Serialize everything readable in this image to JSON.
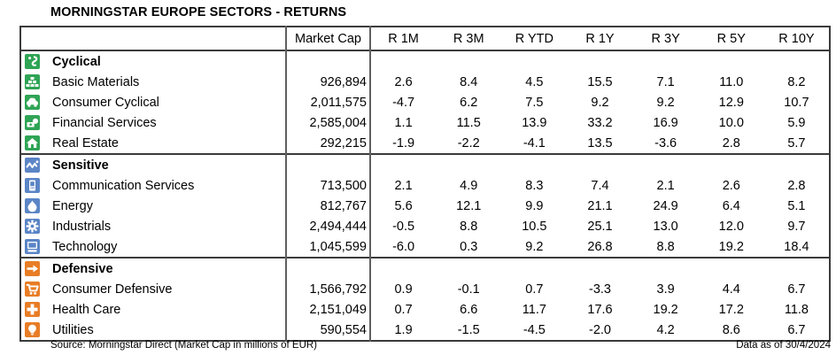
{
  "title": "MORNINGSTAR EUROPE SECTORS - RETURNS",
  "colors": {
    "cyclical": "#2FA455",
    "sensitive": "#5B85C6",
    "defensive": "#E87D25",
    "border_dark": "#3b3b3b",
    "border_gray": "#5f5f5f"
  },
  "table": {
    "columns": [
      "Market Cap",
      "R 1M",
      "R 3M",
      "R YTD",
      "R 1Y",
      "R 3Y",
      "R 5Y",
      "R 10Y"
    ],
    "groups": [
      {
        "name": "Cyclical",
        "icon": "cyclical",
        "color": "#2FA455",
        "rows": [
          {
            "label": "Basic Materials",
            "icon": "basic-materials",
            "market_cap": "926,894",
            "returns": [
              "2.6",
              "8.4",
              "4.5",
              "15.5",
              "7.1",
              "11.0",
              "8.2"
            ]
          },
          {
            "label": "Consumer Cyclical",
            "icon": "consumer-cyclical",
            "market_cap": "2,011,575",
            "returns": [
              "-4.7",
              "6.2",
              "7.5",
              "9.2",
              "9.2",
              "12.9",
              "10.7"
            ]
          },
          {
            "label": "Financial Services",
            "icon": "financial-services",
            "market_cap": "2,585,004",
            "returns": [
              "1.1",
              "11.5",
              "13.9",
              "33.2",
              "16.9",
              "10.0",
              "5.9"
            ]
          },
          {
            "label": "Real Estate",
            "icon": "real-estate",
            "market_cap": "292,215",
            "returns": [
              "-1.9",
              "-2.2",
              "-4.1",
              "13.5",
              "-3.6",
              "2.8",
              "5.7"
            ]
          }
        ]
      },
      {
        "name": "Sensitive",
        "icon": "sensitive",
        "color": "#5B85C6",
        "rows": [
          {
            "label": "Communication Services",
            "icon": "communication-services",
            "market_cap": "713,500",
            "returns": [
              "2.1",
              "4.9",
              "8.3",
              "7.4",
              "2.1",
              "2.6",
              "2.8"
            ]
          },
          {
            "label": "Energy",
            "icon": "energy",
            "market_cap": "812,767",
            "returns": [
              "5.6",
              "12.1",
              "9.9",
              "21.1",
              "24.9",
              "6.4",
              "5.1"
            ]
          },
          {
            "label": "Industrials",
            "icon": "industrials",
            "market_cap": "2,494,444",
            "returns": [
              "-0.5",
              "8.8",
              "10.5",
              "25.1",
              "13.0",
              "12.0",
              "9.7"
            ]
          },
          {
            "label": "Technology",
            "icon": "technology",
            "market_cap": "1,045,599",
            "returns": [
              "-6.0",
              "0.3",
              "9.2",
              "26.8",
              "8.8",
              "19.2",
              "18.4"
            ]
          }
        ]
      },
      {
        "name": "Defensive",
        "icon": "defensive",
        "color": "#E87D25",
        "rows": [
          {
            "label": "Consumer Defensive",
            "icon": "consumer-defensive",
            "market_cap": "1,566,792",
            "returns": [
              "0.9",
              "-0.1",
              "0.7",
              "-3.3",
              "3.9",
              "4.4",
              "6.7"
            ]
          },
          {
            "label": "Health Care",
            "icon": "health-care",
            "market_cap": "2,151,049",
            "returns": [
              "0.7",
              "6.6",
              "11.7",
              "17.6",
              "19.2",
              "17.2",
              "11.8"
            ]
          },
          {
            "label": "Utilities",
            "icon": "utilities",
            "market_cap": "590,554",
            "returns": [
              "1.9",
              "-1.5",
              "-4.5",
              "-2.0",
              "4.2",
              "8.6",
              "6.7"
            ]
          }
        ]
      }
    ]
  },
  "footer": {
    "source": "Source: Morningstar Direct (Market Cap in millions of EUR)",
    "data_as_of": "Data as of 30/4/2024"
  }
}
